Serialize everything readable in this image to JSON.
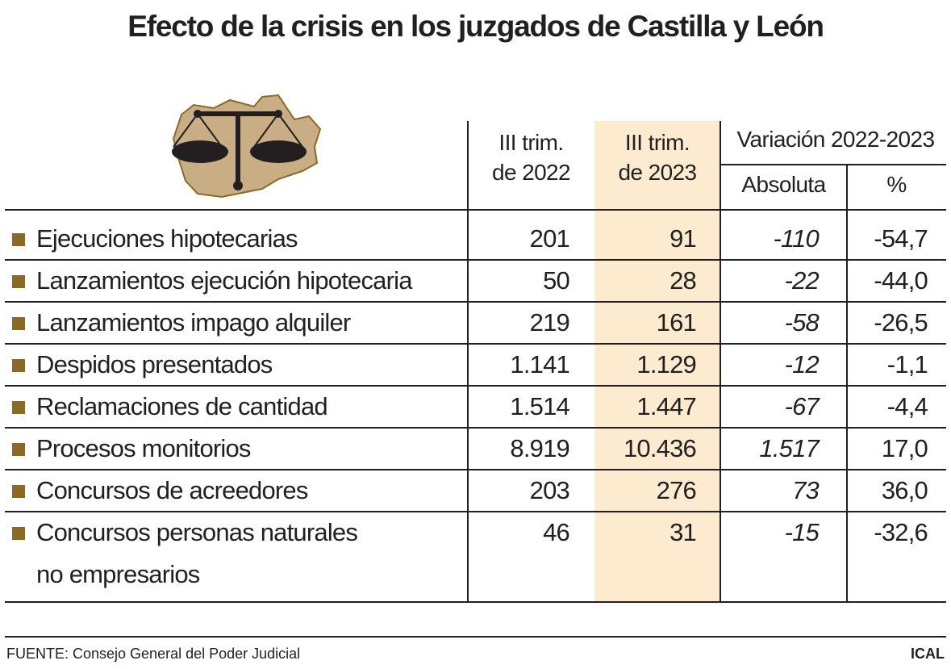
{
  "title": "Efecto de la crisis en los juzgados de Castilla y León",
  "colors": {
    "highlight_column": "#fcebcf",
    "bullet": "#8b6a26",
    "map_fill": "#c9ad85",
    "map_border": "#8b6a26"
  },
  "logo_icon": "scales-of-justice-over-castilla-y-leon-map",
  "chart_data": {
    "type": "table",
    "headers": {
      "col1": [
        "III trim.",
        "de 2022"
      ],
      "col2": [
        "III trim.",
        "de 2023"
      ],
      "group": "Variación 2022-2023",
      "col3": "Absoluta",
      "col4": "%"
    },
    "rows": [
      {
        "label": "Ejecuciones hipotecarias",
        "label2": "",
        "v2022": "201",
        "v2023": "91",
        "abs": "-110",
        "pct": "-54,7"
      },
      {
        "label": "Lanzamientos ejecución hipotecaria",
        "label2": "",
        "v2022": "50",
        "v2023": "28",
        "abs": "-22",
        "pct": "-44,0"
      },
      {
        "label": "Lanzamientos impago alquiler",
        "label2": "",
        "v2022": "219",
        "v2023": "161",
        "abs": "-58",
        "pct": "-26,5"
      },
      {
        "label": "Despidos presentados",
        "label2": "",
        "v2022": "1.141",
        "v2023": "1.129",
        "abs": "-12",
        "pct": "-1,1"
      },
      {
        "label": "Reclamaciones de cantidad",
        "label2": "",
        "v2022": "1.514",
        "v2023": "1.447",
        "abs": "-67",
        "pct": "-4,4"
      },
      {
        "label": "Procesos monitorios",
        "label2": "",
        "v2022": "8.919",
        "v2023": "10.436",
        "abs": "1.517",
        "pct": "17,0"
      },
      {
        "label": "Concursos de acreedores",
        "label2": "",
        "v2022": "203",
        "v2023": "276",
        "abs": "73",
        "pct": "36,0"
      },
      {
        "label": "Concursos personas naturales",
        "label2": "no empresarios",
        "v2022": "46",
        "v2023": "31",
        "abs": "-15",
        "pct": "-32,6"
      }
    ]
  },
  "footer": {
    "source": "FUENTE: Consejo General del Poder Judicial",
    "brand": "ICAL"
  }
}
